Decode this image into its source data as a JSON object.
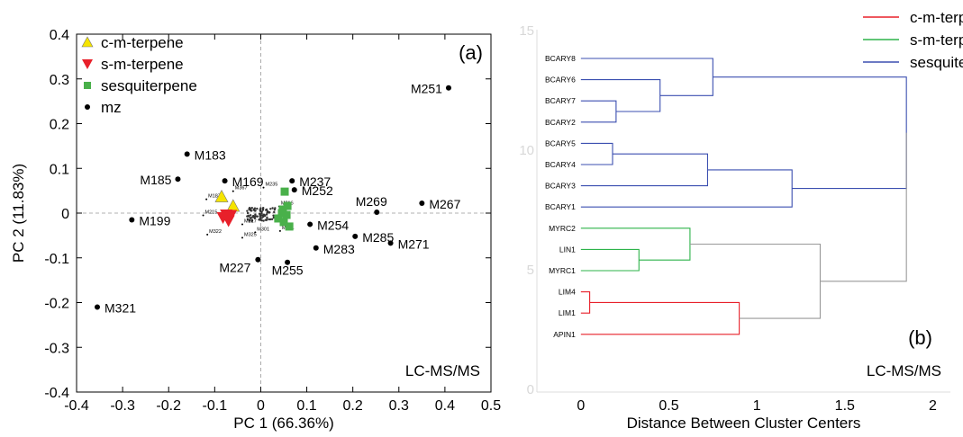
{
  "chart_data": [
    {
      "type": "scatter",
      "panel_label": "(a)",
      "xlabel": "PC 1 (66.36%)",
      "ylabel": "PC 2 (11.83%)",
      "xlim": [
        -0.4,
        0.5
      ],
      "ylim": [
        -0.4,
        0.4
      ],
      "xticks": [
        "-0.4",
        "-0.3",
        "-0.2",
        "-0.1",
        "0",
        "0.1",
        "0.2",
        "0.3",
        "0.4",
        "0.5"
      ],
      "yticks": [
        "0.4",
        "0.3",
        "0.2",
        "0.1",
        "0",
        "-0.1",
        "-0.2",
        "-0.3",
        "-0.4"
      ],
      "annotation": "LC-MS/MS",
      "legend": [
        "c-m-terpene",
        "s-m-terpene",
        "sesquiterpene",
        "mz"
      ],
      "colors": {
        "c-m-terpene": "#f5e400",
        "s-m-terpene": "#e8202a",
        "sesquiterpene": "#49b04a",
        "mz": "#000000"
      },
      "series": [
        {
          "name": "c-m-terpene",
          "marker": "triangle-up",
          "points": [
            [
              -0.085,
              0.037
            ],
            [
              -0.06,
              0.016
            ]
          ]
        },
        {
          "name": "s-m-terpene",
          "marker": "triangle-down",
          "points": [
            [
              -0.075,
              -0.004
            ],
            [
              -0.07,
              -0.017
            ],
            [
              -0.082,
              -0.01
            ],
            [
              -0.065,
              -0.005
            ]
          ]
        },
        {
          "name": "sesquiterpene",
          "marker": "square",
          "points": [
            [
              0.052,
              0.048
            ],
            [
              0.058,
              0.016
            ],
            [
              0.048,
              0.008
            ],
            [
              0.056,
              -0.004
            ],
            [
              0.062,
              -0.03
            ],
            [
              0.046,
              0.0
            ],
            [
              0.038,
              -0.012
            ],
            [
              0.05,
              -0.02
            ]
          ]
        },
        {
          "name": "mz",
          "marker": "dot",
          "points": [
            {
              "label": "M251",
              "x": 0.408,
              "y": 0.28
            },
            {
              "label": "M183",
              "x": -0.16,
              "y": 0.132
            },
            {
              "label": "M185",
              "x": -0.18,
              "y": 0.076
            },
            {
              "label": "M169",
              "x": -0.078,
              "y": 0.072
            },
            {
              "label": "M237",
              "x": 0.068,
              "y": 0.072
            },
            {
              "label": "M252",
              "x": 0.073,
              "y": 0.052
            },
            {
              "label": "M269",
              "x": 0.252,
              "y": 0.002
            },
            {
              "label": "M267",
              "x": 0.35,
              "y": 0.022
            },
            {
              "label": "M199",
              "x": -0.28,
              "y": -0.015
            },
            {
              "label": "M254",
              "x": 0.107,
              "y": -0.025
            },
            {
              "label": "M285",
              "x": 0.205,
              "y": -0.052
            },
            {
              "label": "M271",
              "x": 0.282,
              "y": -0.067
            },
            {
              "label": "M283",
              "x": 0.12,
              "y": -0.078
            },
            {
              "label": "M227",
              "x": -0.006,
              "y": -0.104
            },
            {
              "label": "M255",
              "x": 0.058,
              "y": -0.11
            },
            {
              "label": "M321",
              "x": -0.355,
              "y": -0.21
            }
          ]
        }
      ],
      "small_labels": [
        {
          "label": "M187",
          "x": -0.118,
          "y": 0.031
        },
        {
          "label": "M367",
          "x": -0.06,
          "y": 0.049
        },
        {
          "label": "M215",
          "x": -0.125,
          "y": -0.005
        },
        {
          "label": "M322",
          "x": -0.116,
          "y": -0.048
        },
        {
          "label": "M325",
          "x": -0.04,
          "y": -0.055
        },
        {
          "label": "M301",
          "x": -0.012,
          "y": -0.043
        },
        {
          "label": "M235",
          "x": 0.006,
          "y": 0.057
        },
        {
          "label": "M241",
          "x": 0.042,
          "y": -0.04
        },
        {
          "label": "M216",
          "x": 0.04,
          "y": 0.015
        },
        {
          "label": "M217",
          "x": -0.04,
          "y": -0.025
        }
      ]
    },
    {
      "type": "dendrogram",
      "panel_label": "(b)",
      "xlabel": "Distance Between Cluster Centers",
      "xlim": [
        -0.25,
        2.1
      ],
      "xticks": [
        "0",
        "0.5",
        "1",
        "1.5",
        "2"
      ],
      "yticks": [
        "15",
        "10",
        "5",
        "0"
      ],
      "annotation": "LC-MS/MS",
      "legend": [
        "c-m-terpene",
        "s-m-terpene",
        "sesquiterpene"
      ],
      "colors": {
        "c-m-terpene": "#e8202a",
        "s-m-terpene": "#2db34a",
        "sesquiterpene": "#3b4fb0",
        "root": "#999999"
      },
      "leaves": [
        "BCARY8",
        "BCARY6",
        "BCARY7",
        "BCARY2",
        "BCARY5",
        "BCARY4",
        "BCARY3",
        "BCARY1",
        "MYRC2",
        "LIN1",
        "MYRC1",
        "LIM4",
        "LIM1",
        "APIN1"
      ],
      "merges": [
        {
          "a": "BCARY7",
          "b": "BCARY2",
          "height": 0.2,
          "group": "sesquiterpene"
        },
        {
          "a": "BCARY6",
          "b": "m0",
          "height": 0.45,
          "group": "sesquiterpene"
        },
        {
          "a": "BCARY8",
          "b": "m1",
          "height": 0.75,
          "group": "sesquiterpene"
        },
        {
          "a": "BCARY5",
          "b": "BCARY4",
          "height": 0.18,
          "group": "sesquiterpene"
        },
        {
          "a": "m3",
          "b": "BCARY3",
          "height": 0.72,
          "group": "sesquiterpene"
        },
        {
          "a": "m4",
          "b": "BCARY1",
          "height": 1.2,
          "group": "sesquiterpene"
        },
        {
          "a": "m2",
          "b": "m5",
          "height": 1.85,
          "group": "sesquiterpene"
        },
        {
          "a": "LIN1",
          "b": "MYRC1",
          "height": 0.33,
          "group": "s-m-terpene"
        },
        {
          "a": "MYRC2",
          "b": "m7",
          "height": 0.62,
          "group": "s-m-terpene"
        },
        {
          "a": "LIM4",
          "b": "LIM1",
          "height": 0.05,
          "group": "c-m-terpene"
        },
        {
          "a": "m9",
          "b": "APIN1",
          "height": 0.9,
          "group": "c-m-terpene"
        },
        {
          "a": "m8",
          "b": "m10",
          "height": 1.36,
          "group": "root"
        },
        {
          "a": "m6",
          "b": "m11",
          "height": 1.85,
          "group": "root"
        }
      ]
    }
  ]
}
